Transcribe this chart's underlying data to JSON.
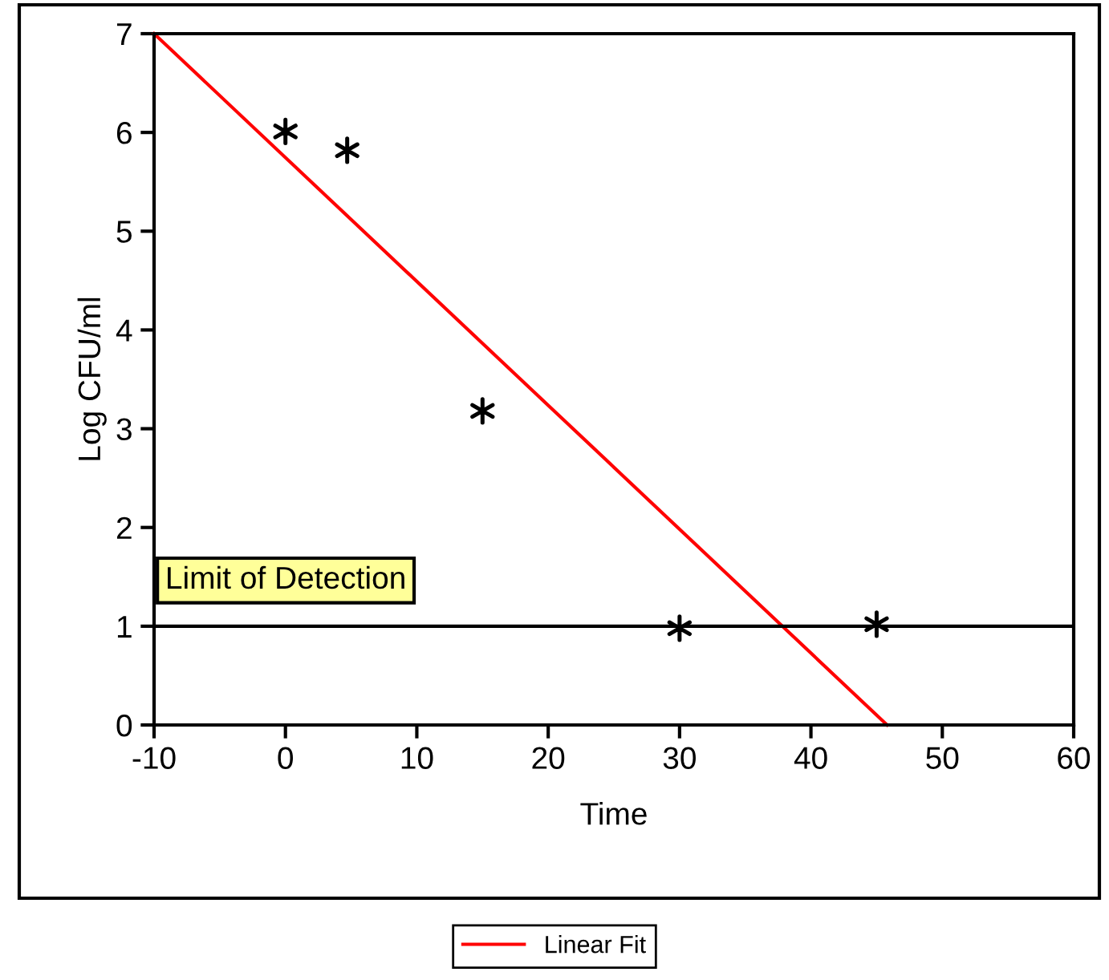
{
  "chart_data": {
    "type": "scatter",
    "xlabel": "Time",
    "ylabel": "Log CFU/ml",
    "xlim": [
      -10,
      60
    ],
    "ylim": [
      0,
      7
    ],
    "xticks": [
      -10,
      0,
      10,
      20,
      30,
      40,
      50,
      60
    ],
    "yticks": [
      0,
      1,
      2,
      3,
      4,
      5,
      6,
      7
    ],
    "grid": false,
    "legend": "bottom",
    "marker": "cross",
    "series": [
      {
        "color": "#000000",
        "x": [
          0,
          4.7,
          15,
          30,
          45
        ],
        "values": [
          6.01,
          5.82,
          3.18,
          0.98,
          1.02
        ]
      },
      {
        "type": "line",
        "name": "Linear Fit",
        "color": "#ff0000",
        "marker": "none",
        "x": [
          -10,
          45.8
        ],
        "values": [
          7,
          0
        ]
      }
    ],
    "ref_lines": [
      {
        "axis": "y",
        "value": 1,
        "label": "Limit of Detection",
        "color": "#000000"
      }
    ]
  }
}
